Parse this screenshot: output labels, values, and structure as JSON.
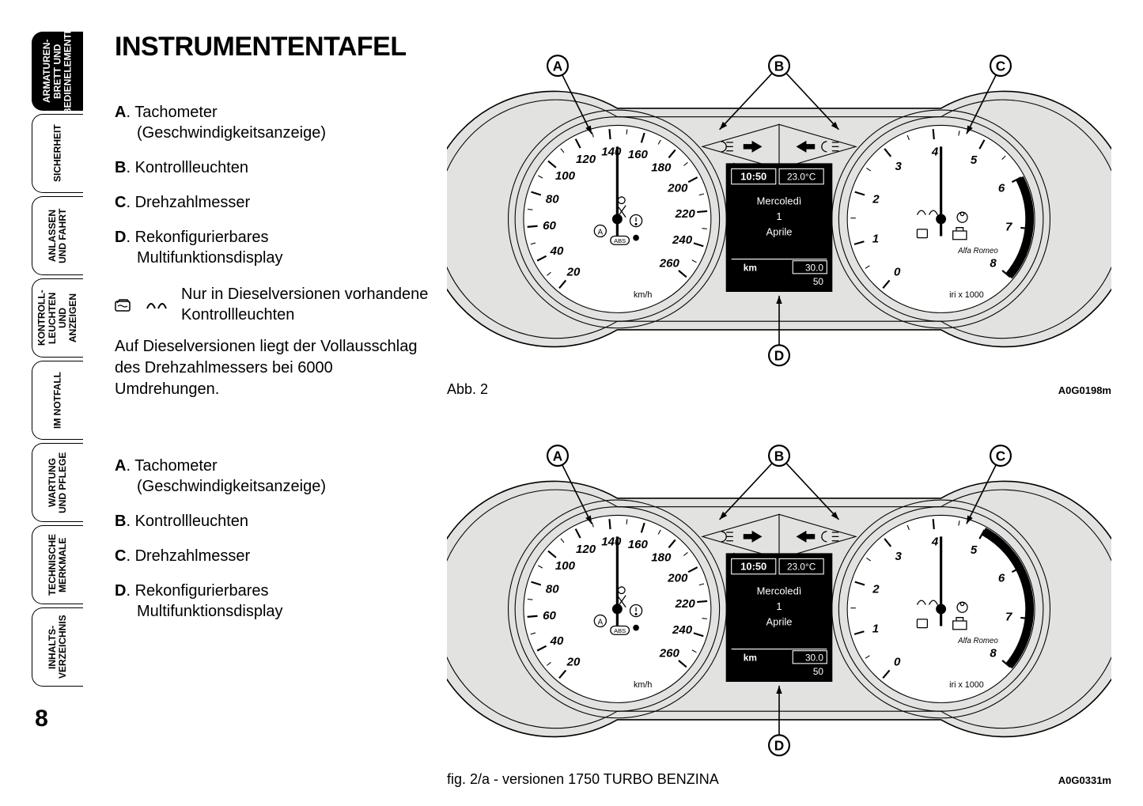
{
  "page_number": "8",
  "tabs": [
    {
      "label": "ARMATUREN-\nBRETT UND\nBEDIENELEMENTE",
      "active": true
    },
    {
      "label": "SICHERHEIT",
      "active": false
    },
    {
      "label": "ANLASSEN\nUND FAHRT",
      "active": false
    },
    {
      "label": "KONTROLL-\nLEUCHTEN\nUND ANZEIGEN",
      "active": false
    },
    {
      "label": "IM NOTFALL",
      "active": false
    },
    {
      "label": "WARTUNG\nUND PFLEGE",
      "active": false
    },
    {
      "label": "TECHNISCHE\nMERKMALE",
      "active": false
    },
    {
      "label": "INHALTS-\nVERZEICHNIS",
      "active": false
    }
  ],
  "title": "INSTRUMENTENTAFEL",
  "legend1": {
    "A": {
      "main": "Tachometer",
      "sub": "(Geschwindigkeitsanzeige)"
    },
    "B": {
      "main": "Kontrollleuchten",
      "sub": ""
    },
    "C": {
      "main": "Drehzahlmesser",
      "sub": ""
    },
    "D": {
      "main": "Rekonfigurierbares",
      "sub": "Multifunktionsdisplay"
    }
  },
  "diesel_note": "Nur in Dieselversionen vorhandene Kontrollleuchten",
  "diesel_body": "Auf Dieselversionen liegt der Vollausschlag des Drehzahlmessers bei 6000 Umdrehungen.",
  "legend2": {
    "A": {
      "main": "Tachometer",
      "sub": "(Geschwindigkeitsanzeige)"
    },
    "B": {
      "main": "Kontrollleuchten",
      "sub": ""
    },
    "C": {
      "main": "Drehzahlmesser",
      "sub": ""
    },
    "D": {
      "main": "Rekonfigurierbares",
      "sub": "Multifunktionsdisplay"
    }
  },
  "figure1": {
    "caption": "Abb. 2",
    "ref": "A0G0198m",
    "callouts": [
      "A",
      "B",
      "C",
      "D"
    ],
    "speedo": {
      "ticks": [
        "20",
        "40",
        "60",
        "80",
        "100",
        "120",
        "140",
        "160",
        "180",
        "200",
        "220",
        "240",
        "260"
      ],
      "unit": "km/h"
    },
    "tacho": {
      "ticks": [
        "0",
        "1",
        "2",
        "3",
        "4",
        "5",
        "6",
        "7",
        "8"
      ],
      "unit": "iri x 1000",
      "redline_from": 6
    },
    "display": {
      "time": "10:50",
      "temp": "23.0°C",
      "lines": [
        "Mercoledì",
        "1",
        "Aprile"
      ],
      "km_label": "km",
      "km_val": "30.0",
      "km_sub": "50"
    }
  },
  "figure2": {
    "caption": "fig. 2/a - versionen 1750 TURBO BENZINA",
    "ref": "A0G0331m",
    "callouts": [
      "A",
      "B",
      "C",
      "D"
    ],
    "speedo": {
      "ticks": [
        "20",
        "40",
        "60",
        "80",
        "100",
        "120",
        "140",
        "160",
        "180",
        "200",
        "220",
        "240",
        "260"
      ],
      "unit": "km/h"
    },
    "tacho": {
      "ticks": [
        "0",
        "1",
        "2",
        "3",
        "4",
        "5",
        "6",
        "7",
        "8"
      ],
      "unit": "iri x 1000",
      "redline_from": 5
    },
    "display": {
      "time": "10:50",
      "temp": "23.0°C",
      "lines": [
        "Mercoledì",
        "1",
        "Aprile"
      ],
      "km_label": "km",
      "km_val": "30.0",
      "km_sub": "50"
    }
  },
  "colors": {
    "cluster_bg": "#e2e2e0",
    "dial_face": "#ffffff",
    "display_bg": "#000000",
    "display_fg": "#ffffff",
    "stroke": "#000000",
    "redline": "#000000"
  }
}
